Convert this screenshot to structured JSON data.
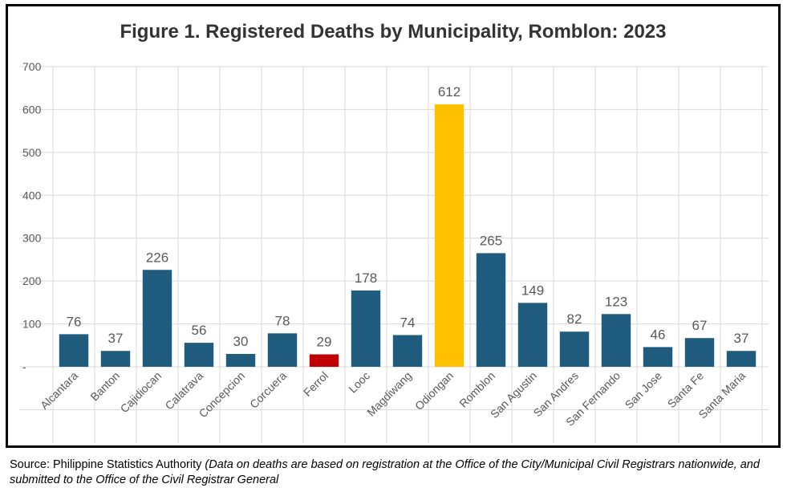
{
  "chart_data": {
    "type": "bar",
    "title": "Figure 1. Registered Deaths by Municipality, Romblon: 2023",
    "xlabel": "",
    "ylabel": "",
    "categories": [
      "Alcantara",
      "Banton",
      "Cajidiocan",
      "Calatrava",
      "Concepcion",
      "Corcuera",
      "Ferrol",
      "Looc",
      "Magdiwang",
      "Odiongan",
      "Romblon",
      "San Agustin",
      "San Andres",
      "San Fernando",
      "San Jose",
      "Santa Fe",
      "Santa Maria"
    ],
    "values": [
      76,
      37,
      226,
      56,
      30,
      78,
      29,
      178,
      74,
      612,
      265,
      149,
      82,
      123,
      46,
      67,
      37
    ],
    "data_labels": [
      "76",
      "37",
      "226",
      "56",
      "30",
      "78",
      "29",
      "178",
      "74",
      "612",
      "265",
      "149",
      "82",
      "123",
      "46",
      "67",
      "37"
    ],
    "ylim": [
      0,
      700
    ],
    "yticks": [
      0,
      100,
      200,
      300,
      400,
      500,
      600,
      700
    ],
    "ytick_labels": [
      "-",
      "100",
      "200",
      "300",
      "400",
      "500",
      "600",
      "700"
    ],
    "grid": true,
    "legend": "none",
    "colors": {
      "default": "#1F5C7E",
      "highest": "#FFC000",
      "lowest": "#C00000",
      "grid": "#D9D9D9",
      "text": "#595959"
    },
    "highlight": {
      "highest": "Odiongan",
      "lowest": "Ferrol"
    }
  },
  "source": {
    "prefix": "Source: Philippine Statistics Authority ",
    "note": "(Data on deaths are based on registration at the Office of the City/Municipal Civil Registrars nationwide, and submitted to the Office of the Civil Registrar General"
  }
}
